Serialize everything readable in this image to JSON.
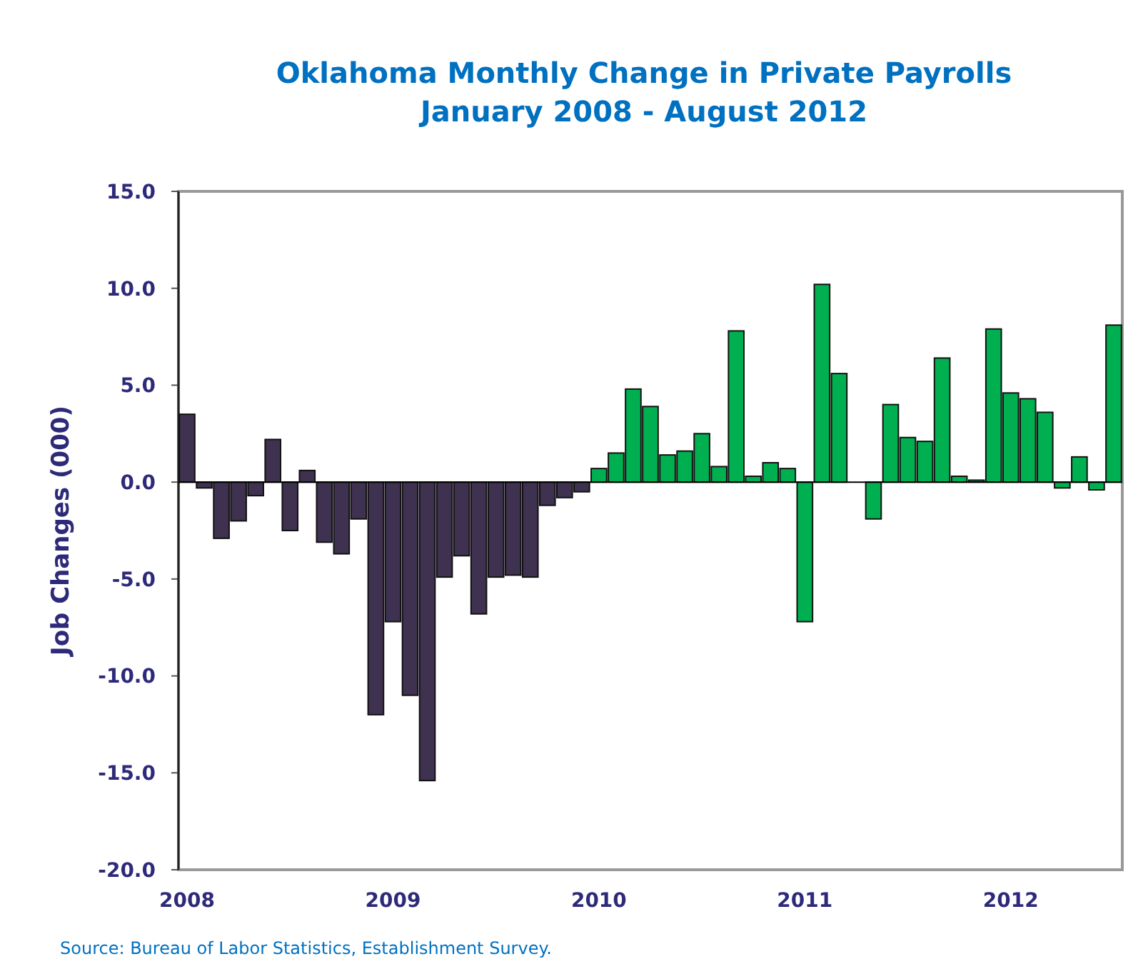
{
  "chart_data": {
    "type": "bar",
    "title": "Oklahoma Monthly Change in Private Payrolls",
    "subtitle": "January 2008 - August 2012",
    "ylabel": "Job Changes (000)",
    "categories": [
      "2008",
      null,
      null,
      null,
      null,
      null,
      null,
      null,
      null,
      null,
      null,
      null,
      "2009",
      null,
      null,
      null,
      null,
      null,
      null,
      null,
      null,
      null,
      null,
      null,
      "2010",
      null,
      null,
      null,
      null,
      null,
      null,
      null,
      null,
      null,
      null,
      null,
      "2011",
      null,
      null,
      null,
      null,
      null,
      null,
      null,
      null,
      null,
      null,
      null,
      "2012",
      null,
      null,
      null,
      null,
      null,
      null
    ],
    "values": [
      3.5,
      -0.3,
      -2.9,
      -2.0,
      -0.7,
      2.2,
      -2.5,
      0.6,
      -3.1,
      -3.7,
      -1.9,
      -12.0,
      -7.2,
      -11.0,
      -15.4,
      -4.9,
      -3.8,
      -6.8,
      -4.9,
      -4.8,
      -4.9,
      -1.2,
      -0.8,
      -0.5,
      0.7,
      1.5,
      4.8,
      3.9,
      1.4,
      1.6,
      2.5,
      0.8,
      7.8,
      0.3,
      1.0,
      0.7,
      -7.2,
      10.2,
      5.6,
      0.0,
      -1.9,
      4.0,
      2.3,
      2.1,
      6.4,
      0.3,
      0.1,
      7.9,
      4.6,
      4.3,
      3.6,
      -0.3,
      1.3,
      -0.4,
      8.1
    ],
    "colors": [
      "#3f3150",
      "#3f3150",
      "#3f3150",
      "#3f3150",
      "#3f3150",
      "#3f3150",
      "#3f3150",
      "#3f3150",
      "#3f3150",
      "#3f3150",
      "#3f3150",
      "#3f3150",
      "#3f3150",
      "#3f3150",
      "#3f3150",
      "#3f3150",
      "#3f3150",
      "#3f3150",
      "#3f3150",
      "#3f3150",
      "#3f3150",
      "#3f3150",
      "#3f3150",
      "#3f3150",
      "#00b050",
      "#00b050",
      "#00b050",
      "#00b050",
      "#00b050",
      "#00b050",
      "#00b050",
      "#00b050",
      "#00b050",
      "#00b050",
      "#00b050",
      "#00b050",
      "#00b050",
      "#00b050",
      "#00b050",
      "#00b050",
      "#00b050",
      "#00b050",
      "#00b050",
      "#00b050",
      "#00b050",
      "#00b050",
      "#00b050",
      "#00b050",
      "#00b050",
      "#00b050",
      "#00b050",
      "#00b050",
      "#00b050",
      "#00b050",
      "#00b050"
    ],
    "ylim": [
      -20,
      15
    ],
    "yticks": [
      {
        "value": -20,
        "label": "-20.0"
      },
      {
        "value": -15,
        "label": "-15.0"
      },
      {
        "value": -10,
        "label": "-10.0"
      },
      {
        "value": -5,
        "label": "-5.0"
      },
      {
        "value": 0,
        "label": "0.0"
      },
      {
        "value": 5,
        "label": "5.0"
      },
      {
        "value": 10,
        "label": "10.0"
      },
      {
        "value": 15,
        "label": "15.0"
      }
    ],
    "annotations": [
      "Source: Bureau of Labor Statistics, Establishment Survey."
    ]
  }
}
